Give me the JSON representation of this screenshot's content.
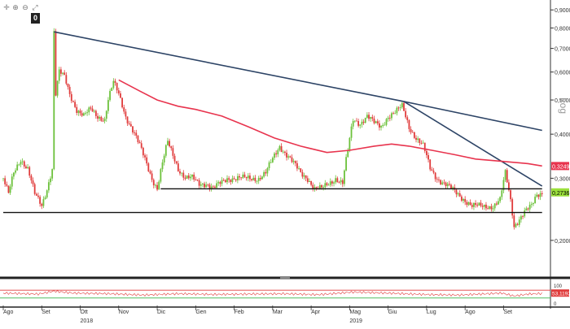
{
  "toolbar": {
    "icons": [
      "crosshair-icon",
      "zoom-icon",
      "zoom-out-icon",
      "fit-icon"
    ],
    "glyphs": [
      "✛",
      "⊕",
      "⊖",
      "⤢"
    ],
    "badge": "0"
  },
  "chart_data": {
    "type": "candlestick",
    "scale_label": "Log",
    "y_ticks": [
      "0,9000",
      "0,8000",
      "0,7000",
      "0,6000",
      "0,5000",
      "0,4000",
      "0,3000",
      "0,2000"
    ],
    "y_tick_values": [
      0.9,
      0.8,
      0.7,
      0.6,
      0.5,
      0.4,
      0.3,
      0.2
    ],
    "ylim": [
      0.16,
      0.95
    ],
    "x_months": [
      "Ago",
      "Set",
      "Ott",
      "Nov",
      "Dic",
      "Gen",
      "Feb",
      "Mar",
      "Apr",
      "Mag",
      "Giu",
      "Lug",
      "Ago",
      "Set"
    ],
    "x_month_index": [
      0,
      22,
      44,
      66,
      88,
      110,
      132,
      154,
      176,
      198,
      220,
      242,
      264,
      286
    ],
    "x_years": [
      {
        "label": "2018",
        "index": 44
      },
      {
        "label": "2019",
        "index": 198
      }
    ],
    "x_range": [
      0,
      310
    ],
    "price_label": "0,2736",
    "price_value": 0.2736,
    "ma_label": "0,3249",
    "ma_value": 0.3249,
    "ma_points": [
      [
        66,
        0.57
      ],
      [
        78,
        0.53
      ],
      [
        88,
        0.5
      ],
      [
        100,
        0.48
      ],
      [
        110,
        0.47
      ],
      [
        125,
        0.45
      ],
      [
        140,
        0.42
      ],
      [
        155,
        0.39
      ],
      [
        170,
        0.37
      ],
      [
        185,
        0.355
      ],
      [
        198,
        0.36
      ],
      [
        212,
        0.37
      ],
      [
        222,
        0.375
      ],
      [
        232,
        0.37
      ],
      [
        245,
        0.36
      ],
      [
        258,
        0.35
      ],
      [
        270,
        0.34
      ],
      [
        285,
        0.335
      ],
      [
        300,
        0.33
      ],
      [
        308,
        0.325
      ]
    ],
    "trendlines": [
      {
        "from": [
          29,
          0.78
        ],
        "to": [
          229,
          0.495
        ]
      },
      {
        "from": [
          229,
          0.495
        ],
        "to": [
          308,
          0.41
        ]
      },
      {
        "from": [
          229,
          0.495
        ],
        "to": [
          308,
          0.285
        ]
      },
      {
        "from": [
          90,
          0.28
        ],
        "to": [
          308,
          0.28
        ]
      },
      {
        "from": [
          0,
          0.24
        ],
        "to": [
          308,
          0.24
        ]
      }
    ],
    "price_anchors": [
      [
        0,
        0.3
      ],
      [
        3,
        0.27
      ],
      [
        6,
        0.31
      ],
      [
        10,
        0.34
      ],
      [
        14,
        0.32
      ],
      [
        18,
        0.27
      ],
      [
        22,
        0.25
      ],
      [
        25,
        0.28
      ],
      [
        28,
        0.32
      ],
      [
        29,
        0.78
      ],
      [
        30,
        0.52
      ],
      [
        32,
        0.6
      ],
      [
        35,
        0.58
      ],
      [
        38,
        0.52
      ],
      [
        42,
        0.47
      ],
      [
        46,
        0.45
      ],
      [
        50,
        0.47
      ],
      [
        54,
        0.45
      ],
      [
        58,
        0.44
      ],
      [
        60,
        0.5
      ],
      [
        63,
        0.56
      ],
      [
        66,
        0.52
      ],
      [
        70,
        0.45
      ],
      [
        74,
        0.41
      ],
      [
        78,
        0.37
      ],
      [
        82,
        0.33
      ],
      [
        85,
        0.3
      ],
      [
        88,
        0.28
      ],
      [
        91,
        0.33
      ],
      [
        94,
        0.38
      ],
      [
        97,
        0.35
      ],
      [
        100,
        0.32
      ],
      [
        104,
        0.3
      ],
      [
        108,
        0.3
      ],
      [
        112,
        0.29
      ],
      [
        116,
        0.29
      ],
      [
        120,
        0.28
      ],
      [
        124,
        0.29
      ],
      [
        128,
        0.3
      ],
      [
        134,
        0.3
      ],
      [
        140,
        0.3
      ],
      [
        146,
        0.3
      ],
      [
        150,
        0.31
      ],
      [
        154,
        0.34
      ],
      [
        158,
        0.37
      ],
      [
        162,
        0.35
      ],
      [
        166,
        0.33
      ],
      [
        170,
        0.31
      ],
      [
        174,
        0.3
      ],
      [
        178,
        0.28
      ],
      [
        182,
        0.28
      ],
      [
        186,
        0.29
      ],
      [
        190,
        0.3
      ],
      [
        194,
        0.29
      ],
      [
        197,
        0.36
      ],
      [
        200,
        0.44
      ],
      [
        204,
        0.43
      ],
      [
        208,
        0.45
      ],
      [
        212,
        0.43
      ],
      [
        216,
        0.42
      ],
      [
        220,
        0.45
      ],
      [
        224,
        0.46
      ],
      [
        228,
        0.48
      ],
      [
        232,
        0.42
      ],
      [
        236,
        0.39
      ],
      [
        240,
        0.37
      ],
      [
        244,
        0.32
      ],
      [
        248,
        0.3
      ],
      [
        252,
        0.29
      ],
      [
        256,
        0.28
      ],
      [
        260,
        0.27
      ],
      [
        264,
        0.26
      ],
      [
        268,
        0.25
      ],
      [
        272,
        0.25
      ],
      [
        276,
        0.25
      ],
      [
        280,
        0.25
      ],
      [
        284,
        0.26
      ],
      [
        287,
        0.31
      ],
      [
        290,
        0.26
      ],
      [
        292,
        0.22
      ],
      [
        295,
        0.23
      ],
      [
        298,
        0.24
      ],
      [
        302,
        0.25
      ],
      [
        305,
        0.27
      ],
      [
        308,
        0.2736
      ]
    ],
    "rsi_label": "53,1192",
    "rsi_value": 53.1192,
    "rsi_ticks": [
      "100",
      "0"
    ],
    "rsi_levels": [
      70,
      30
    ],
    "rsi_anchors": [
      [
        0,
        55
      ],
      [
        20,
        50
      ],
      [
        29,
        65
      ],
      [
        40,
        55
      ],
      [
        60,
        52
      ],
      [
        80,
        45
      ],
      [
        100,
        52
      ],
      [
        120,
        48
      ],
      [
        140,
        50
      ],
      [
        160,
        52
      ],
      [
        180,
        47
      ],
      [
        200,
        60
      ],
      [
        220,
        55
      ],
      [
        240,
        48
      ],
      [
        260,
        45
      ],
      [
        285,
        55
      ],
      [
        292,
        40
      ],
      [
        300,
        50
      ],
      [
        308,
        53
      ]
    ]
  }
}
